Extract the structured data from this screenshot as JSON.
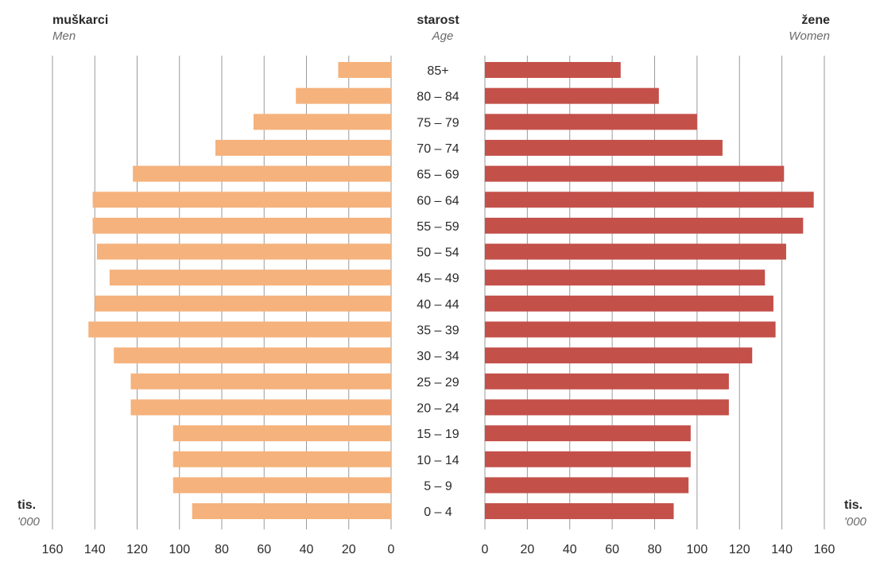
{
  "chart_data": {
    "type": "bar",
    "orientation": "horizontal-population-pyramid",
    "left_title": "muškarci",
    "left_subtitle": "Men",
    "center_title": "starost",
    "center_subtitle": "Age",
    "right_title": "žene",
    "right_subtitle": "Women",
    "unit_label": "tis.",
    "unit_sublabel": "'000",
    "categories": [
      "85+",
      "80 – 84",
      "75 – 79",
      "70 – 74",
      "65 – 69",
      "60 – 64",
      "55 – 59",
      "50 – 54",
      "45 – 49",
      "40 – 44",
      "35 – 39",
      "30 – 34",
      "25 – 29",
      "20 – 24",
      "15 – 19",
      "10 – 14",
      "5 – 9",
      "0 – 4"
    ],
    "series": [
      {
        "values": [
          25,
          45,
          65,
          83,
          122,
          141,
          141,
          139,
          133,
          140,
          143,
          131,
          123,
          123,
          103,
          103,
          103,
          94
        ]
      },
      {
        "values": [
          64,
          82,
          100,
          112,
          141,
          155,
          150,
          142,
          132,
          136,
          137,
          126,
          115,
          115,
          97,
          97,
          96,
          89
        ]
      }
    ],
    "xlim": [
      0,
      160
    ],
    "ticks": [
      0,
      20,
      40,
      60,
      80,
      100,
      120,
      140,
      160
    ],
    "grid": true,
    "colors": {
      "men": "#f5b27c",
      "women": "#c4504a",
      "grid": "#9a9a9a",
      "text": "#2a2a2a",
      "subtext": "#6a6a6a"
    }
  }
}
